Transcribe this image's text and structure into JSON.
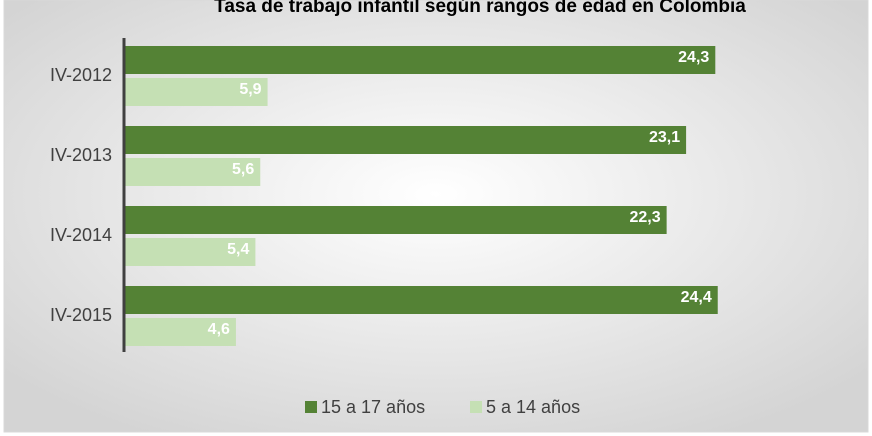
{
  "chart_data": {
    "type": "bar",
    "orientation": "horizontal",
    "title": "Tasa de trabajo infantil según rangos de edad en Colombia",
    "categories": [
      "IV-2012",
      "IV-2013",
      "IV-2014",
      "IV-2015"
    ],
    "series": [
      {
        "name": "15 a 17 años",
        "color": "#548235",
        "values": [
          24.3,
          23.1,
          22.3,
          24.4
        ],
        "value_labels": [
          "24,3",
          "23,1",
          "22,3",
          "24,4"
        ]
      },
      {
        "name": "5 a 14 años",
        "color": "#c5e0b4",
        "values": [
          5.9,
          5.6,
          5.4,
          4.6
        ],
        "value_labels": [
          "5,9",
          "5,6",
          "5,4",
          "4,6"
        ]
      }
    ],
    "xlim": [
      0,
      30
    ],
    "legend": "bottom"
  }
}
